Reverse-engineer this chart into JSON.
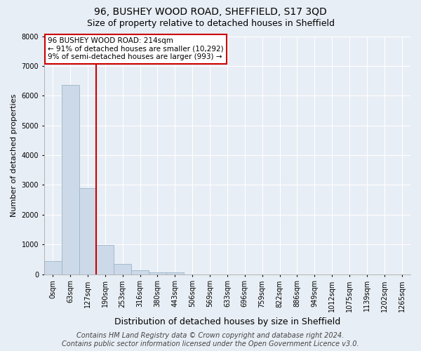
{
  "title": "96, BUSHEY WOOD ROAD, SHEFFIELD, S17 3QD",
  "subtitle": "Size of property relative to detached houses in Sheffield",
  "xlabel": "Distribution of detached houses by size in Sheffield",
  "ylabel": "Number of detached properties",
  "bar_labels": [
    "0sqm",
    "63sqm",
    "127sqm",
    "190sqm",
    "253sqm",
    "316sqm",
    "380sqm",
    "443sqm",
    "506sqm",
    "569sqm",
    "633sqm",
    "696sqm",
    "759sqm",
    "822sqm",
    "886sqm",
    "949sqm",
    "1012sqm",
    "1075sqm",
    "1139sqm",
    "1202sqm",
    "1265sqm"
  ],
  "bar_values": [
    430,
    6350,
    2900,
    970,
    340,
    130,
    60,
    50,
    0,
    0,
    0,
    0,
    0,
    0,
    0,
    0,
    0,
    0,
    0,
    0,
    0
  ],
  "bar_color": "#ccd9e8",
  "bar_edge_color": "#9ab5cc",
  "vline_x": 2.5,
  "vline_color": "#cc0000",
  "annotation_text": "96 BUSHEY WOOD ROAD: 214sqm\n← 91% of detached houses are smaller (10,292)\n9% of semi-detached houses are larger (993) →",
  "annotation_box_color": "#ffffff",
  "annotation_box_edge": "#cc0000",
  "ylim": [
    0,
    8000
  ],
  "yticks": [
    0,
    1000,
    2000,
    3000,
    4000,
    5000,
    6000,
    7000,
    8000
  ],
  "footer_text": "Contains HM Land Registry data © Crown copyright and database right 2024.\nContains public sector information licensed under the Open Government Licence v3.0.",
  "bg_color": "#e8eef5",
  "grid_color": "#ffffff",
  "title_fontsize": 10,
  "subtitle_fontsize": 9,
  "ylabel_fontsize": 8,
  "xlabel_fontsize": 9,
  "footer_fontsize": 7,
  "annot_fontsize": 7.5,
  "tick_fontsize": 7
}
